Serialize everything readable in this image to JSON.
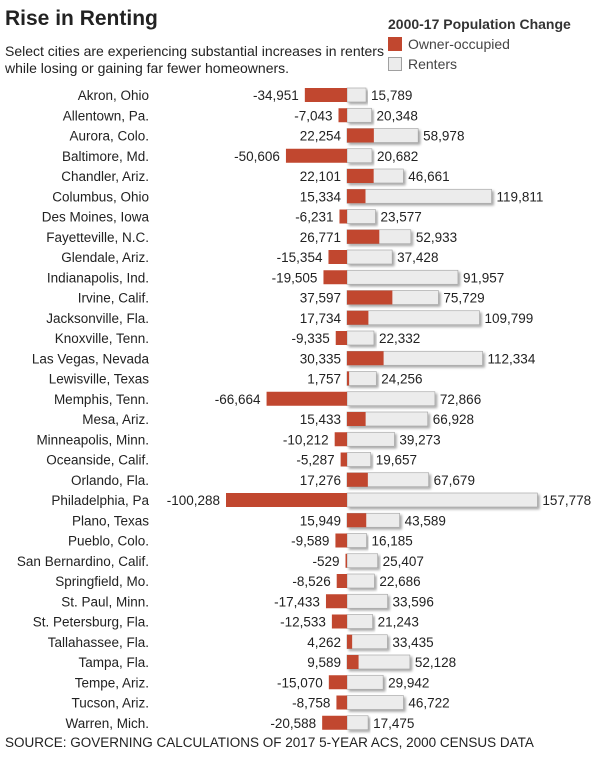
{
  "chart_data": {
    "type": "bar",
    "title": "Rise in Renting",
    "subtitle": "Select cities are experiencing substantial increases in renters while losing or gaining far fewer homeowners.",
    "legend_title": "2000-17 Population Change",
    "legend_placement": "top-right",
    "source": "SOURCE: GOVERNING CALCULATIONS OF 2017 5-YEAR ACS, 2000 CENSUS DATA",
    "colors": {
      "owner": "#c1472f",
      "renter": "#ececec",
      "renter_border": "#a0a0a0"
    },
    "categories": [
      "Akron, Ohio",
      "Allentown, Pa.",
      "Aurora, Colo.",
      "Baltimore, Md.",
      "Chandler, Ariz.",
      "Columbus, Ohio",
      "Des Moines, Iowa",
      "Fayetteville, N.C.",
      "Glendale, Ariz.",
      "Indianapolis, Ind.",
      "Irvine, Calif.",
      "Jacksonville, Fla.",
      "Knoxville, Tenn.",
      "Las Vegas, Nevada",
      "Lewisville, Texas",
      "Memphis, Tenn.",
      "Mesa, Ariz.",
      "Minneapolis, Minn.",
      "Oceanside, Calif.",
      "Orlando, Fla.",
      "Philadelphia, Pa",
      "Plano, Texas",
      "Pueblo, Colo.",
      "San Bernardino, Calif.",
      "Springfield, Mo.",
      "St. Paul, Minn.",
      "St. Petersburg, Fla.",
      "Tallahassee, Fla.",
      "Tampa, Fla.",
      "Tempe, Ariz.",
      "Tucson, Ariz.",
      "Warren, Mich."
    ],
    "series": [
      {
        "name": "Owner-occupied",
        "values": [
          -34951,
          -7043,
          22254,
          -50606,
          22101,
          15334,
          -6231,
          26771,
          -15354,
          -19505,
          37597,
          17734,
          -9335,
          30335,
          1757,
          -66664,
          15433,
          -10212,
          -5287,
          17276,
          -100288,
          15949,
          -9589,
          -529,
          -8526,
          -17433,
          -12533,
          4262,
          9589,
          -15070,
          -8758,
          -20588
        ],
        "labels": [
          "-34,951",
          "-7,043",
          "22,254",
          "-50,606",
          "22,101",
          "15,334",
          "-6,231",
          "26,771",
          "-15,354",
          "-19,505",
          "37,597",
          "17,734",
          "-9,335",
          "30,335",
          "1,757",
          "-66,664",
          "15,433",
          "-10,212",
          "-5,287",
          "17,276",
          "-100,288",
          "15,949",
          "-9,589",
          "-529",
          "-8,526",
          "-17,433",
          "-12,533",
          "4,262",
          "9,589",
          "-15,070",
          "-8,758",
          "-20,588"
        ]
      },
      {
        "name": "Renters",
        "values": [
          15789,
          20348,
          58978,
          20682,
          46661,
          119811,
          23577,
          52933,
          37428,
          91957,
          75729,
          109799,
          22332,
          112334,
          24256,
          72866,
          66928,
          39273,
          19657,
          67679,
          157778,
          43589,
          16185,
          25407,
          22686,
          33596,
          21243,
          33435,
          52128,
          29942,
          46722,
          17475
        ],
        "labels": [
          "15,789",
          "20,348",
          "58,978",
          "20,682",
          "46,661",
          "119,811",
          "23,577",
          "52,933",
          "37,428",
          "91,957",
          "75,729",
          "109,799",
          "22,332",
          "112,334",
          "24,256",
          "72,866",
          "66,928",
          "39,273",
          "19,657",
          "67,679",
          "157,778",
          "43,589",
          "16,185",
          "25,407",
          "22,686",
          "33,596",
          "21,243",
          "33,435",
          "52,128",
          "29,942",
          "46,722",
          "17,475"
        ]
      }
    ],
    "xlim": [
      -100288,
      157778
    ],
    "xlabel": "",
    "ylabel": "",
    "grid": false
  }
}
